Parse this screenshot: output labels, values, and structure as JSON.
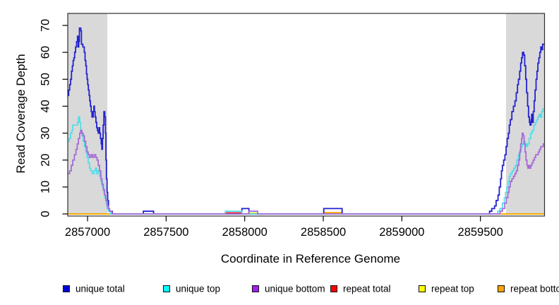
{
  "figure": {
    "xlabel": "Coordinate in Reference Genome",
    "ylabel": "Read Coverage Depth",
    "background_color": "#FFFFFF",
    "box_color": "#2F2F2F",
    "shade_color": "#D9D9D9",
    "tick_color": "#000000"
  },
  "chart_data": {
    "type": "line",
    "step": true,
    "title": "",
    "xlabel": "Coordinate in Reference Genome",
    "ylabel": "Read Coverage Depth",
    "xlim": [
      2856874,
      2859908
    ],
    "ylim": [
      0,
      70
    ],
    "x_ticks": [
      2857000,
      2857500,
      2858000,
      2858500,
      2859000,
      2859500
    ],
    "y_ticks": [
      0,
      10,
      20,
      30,
      40,
      50,
      60,
      70
    ],
    "grid": false,
    "legend_position": "bottom-horizontal",
    "shaded_regions": [
      {
        "name": "left-repeat-region",
        "from": 2856874,
        "to": 2857126
      },
      {
        "name": "right-repeat-region",
        "from": 2859663,
        "to": 2859908
      }
    ],
    "series": [
      {
        "name": "unique total",
        "line_color": "#2222CF",
        "legend_color": "#0000DD",
        "draw_order": 4,
        "points": [
          [
            2856874,
            44
          ],
          [
            2856880,
            46
          ],
          [
            2856886,
            48
          ],
          [
            2856892,
            50
          ],
          [
            2856898,
            53
          ],
          [
            2856903,
            55
          ],
          [
            2856908,
            57
          ],
          [
            2856913,
            58
          ],
          [
            2856918,
            60
          ],
          [
            2856924,
            62
          ],
          [
            2856930,
            64
          ],
          [
            2856936,
            66
          ],
          [
            2856940,
            62
          ],
          [
            2856944,
            64
          ],
          [
            2856948,
            69
          ],
          [
            2856957,
            68
          ],
          [
            2856961,
            63
          ],
          [
            2856970,
            62
          ],
          [
            2856979,
            60
          ],
          [
            2856984,
            57
          ],
          [
            2856989,
            55
          ],
          [
            2856993,
            52
          ],
          [
            2856997,
            50
          ],
          [
            2857001,
            48
          ],
          [
            2857005,
            46
          ],
          [
            2857010,
            44
          ],
          [
            2857014,
            42
          ],
          [
            2857018,
            40
          ],
          [
            2857023,
            38
          ],
          [
            2857028,
            36
          ],
          [
            2857036,
            38
          ],
          [
            2857040,
            40
          ],
          [
            2857044,
            38
          ],
          [
            2857048,
            36
          ],
          [
            2857053,
            34
          ],
          [
            2857058,
            32
          ],
          [
            2857063,
            31
          ],
          [
            2857068,
            30
          ],
          [
            2857073,
            32
          ],
          [
            2857077,
            30
          ],
          [
            2857082,
            28
          ],
          [
            2857087,
            26
          ],
          [
            2857091,
            24
          ],
          [
            2857095,
            28
          ],
          [
            2857099,
            33
          ],
          [
            2857104,
            38
          ],
          [
            2857110,
            36
          ],
          [
            2857114,
            30
          ],
          [
            2857117,
            20
          ],
          [
            2857120,
            13
          ],
          [
            2857124,
            8
          ],
          [
            2857128,
            5
          ],
          [
            2857133,
            2
          ],
          [
            2857140,
            1
          ],
          [
            2857158,
            0
          ],
          [
            2857355,
            1
          ],
          [
            2857420,
            0
          ],
          [
            2857982,
            2
          ],
          [
            2858027,
            0
          ],
          [
            2858503,
            2
          ],
          [
            2858620,
            0
          ],
          [
            2859558,
            1
          ],
          [
            2859572,
            2
          ],
          [
            2859590,
            3
          ],
          [
            2859600,
            5
          ],
          [
            2859612,
            7
          ],
          [
            2859620,
            10
          ],
          [
            2859628,
            13
          ],
          [
            2859634,
            16
          ],
          [
            2859640,
            18
          ],
          [
            2859648,
            20
          ],
          [
            2859656,
            22
          ],
          [
            2859663,
            25
          ],
          [
            2859670,
            28
          ],
          [
            2859678,
            30
          ],
          [
            2859684,
            33
          ],
          [
            2859690,
            35
          ],
          [
            2859700,
            38
          ],
          [
            2859710,
            40
          ],
          [
            2859720,
            42
          ],
          [
            2859728,
            45
          ],
          [
            2859736,
            48
          ],
          [
            2859742,
            50
          ],
          [
            2859750,
            53
          ],
          [
            2859756,
            56
          ],
          [
            2859762,
            58
          ],
          [
            2859768,
            60
          ],
          [
            2859776,
            59
          ],
          [
            2859782,
            55
          ],
          [
            2859788,
            50
          ],
          [
            2859794,
            45
          ],
          [
            2859800,
            40
          ],
          [
            2859806,
            36
          ],
          [
            2859812,
            34
          ],
          [
            2859816,
            33
          ],
          [
            2859822,
            35
          ],
          [
            2859826,
            37
          ],
          [
            2859830,
            34
          ],
          [
            2859836,
            38
          ],
          [
            2859842,
            42
          ],
          [
            2859848,
            46
          ],
          [
            2859854,
            50
          ],
          [
            2859860,
            53
          ],
          [
            2859866,
            56
          ],
          [
            2859872,
            58
          ],
          [
            2859878,
            60
          ],
          [
            2859884,
            62
          ],
          [
            2859890,
            61
          ],
          [
            2859896,
            63
          ],
          [
            2859908,
            63
          ]
        ]
      },
      {
        "name": "unique top",
        "line_color": "#53DEE8",
        "legend_color": "#00FFFF",
        "draw_order": 5,
        "points": [
          [
            2856874,
            27
          ],
          [
            2856884,
            28
          ],
          [
            2856892,
            30
          ],
          [
            2856900,
            31
          ],
          [
            2856906,
            33
          ],
          [
            2856932,
            33
          ],
          [
            2856936,
            34
          ],
          [
            2856942,
            36
          ],
          [
            2856950,
            34
          ],
          [
            2856956,
            31
          ],
          [
            2856964,
            29
          ],
          [
            2856972,
            27
          ],
          [
            2856980,
            25
          ],
          [
            2856988,
            23
          ],
          [
            2856996,
            21
          ],
          [
            2857004,
            19
          ],
          [
            2857012,
            17
          ],
          [
            2857020,
            16
          ],
          [
            2857030,
            15
          ],
          [
            2857042,
            16
          ],
          [
            2857050,
            17
          ],
          [
            2857058,
            15
          ],
          [
            2857066,
            16
          ],
          [
            2857076,
            14
          ],
          [
            2857086,
            12
          ],
          [
            2857094,
            10
          ],
          [
            2857102,
            8
          ],
          [
            2857110,
            6
          ],
          [
            2857118,
            4
          ],
          [
            2857124,
            2
          ],
          [
            2857132,
            1
          ],
          [
            2857145,
            0
          ],
          [
            2857877,
            1
          ],
          [
            2857982,
            0
          ],
          [
            2859600,
            0
          ],
          [
            2859610,
            1
          ],
          [
            2859625,
            2
          ],
          [
            2859640,
            4
          ],
          [
            2859652,
            6
          ],
          [
            2859660,
            8
          ],
          [
            2859668,
            10
          ],
          [
            2859676,
            12
          ],
          [
            2859684,
            14
          ],
          [
            2859692,
            15
          ],
          [
            2859702,
            16
          ],
          [
            2859712,
            17
          ],
          [
            2859722,
            18
          ],
          [
            2859732,
            20
          ],
          [
            2859742,
            22
          ],
          [
            2859752,
            24
          ],
          [
            2859760,
            25
          ],
          [
            2859768,
            26
          ],
          [
            2859776,
            27
          ],
          [
            2859784,
            26
          ],
          [
            2859792,
            25
          ],
          [
            2859800,
            26
          ],
          [
            2859810,
            28
          ],
          [
            2859820,
            30
          ],
          [
            2859830,
            31
          ],
          [
            2859840,
            33
          ],
          [
            2859850,
            34
          ],
          [
            2859858,
            35
          ],
          [
            2859866,
            36
          ],
          [
            2859874,
            37
          ],
          [
            2859882,
            36
          ],
          [
            2859890,
            38
          ],
          [
            2859898,
            39
          ],
          [
            2859908,
            39
          ]
        ]
      },
      {
        "name": "unique bottom",
        "line_color": "#A66BD8",
        "legend_color": "#A020F0",
        "draw_order": 6,
        "points": [
          [
            2856874,
            15
          ],
          [
            2856886,
            16
          ],
          [
            2856896,
            18
          ],
          [
            2856906,
            20
          ],
          [
            2856916,
            22
          ],
          [
            2856926,
            24
          ],
          [
            2856934,
            26
          ],
          [
            2856942,
            28
          ],
          [
            2856950,
            30
          ],
          [
            2856956,
            31
          ],
          [
            2856964,
            30
          ],
          [
            2856972,
            29
          ],
          [
            2856980,
            27
          ],
          [
            2856988,
            25
          ],
          [
            2856996,
            23
          ],
          [
            2857004,
            22
          ],
          [
            2857012,
            21
          ],
          [
            2857022,
            22
          ],
          [
            2857032,
            21
          ],
          [
            2857042,
            22
          ],
          [
            2857052,
            21
          ],
          [
            2857060,
            20
          ],
          [
            2857068,
            18
          ],
          [
            2857076,
            16
          ],
          [
            2857084,
            13
          ],
          [
            2857092,
            11
          ],
          [
            2857100,
            9
          ],
          [
            2857108,
            7
          ],
          [
            2857116,
            5
          ],
          [
            2857124,
            3
          ],
          [
            2857132,
            2
          ],
          [
            2857140,
            1
          ],
          [
            2857155,
            0
          ],
          [
            2858027,
            1
          ],
          [
            2858082,
            0
          ],
          [
            2859615,
            0
          ],
          [
            2859625,
            1
          ],
          [
            2859640,
            2
          ],
          [
            2859655,
            4
          ],
          [
            2859665,
            6
          ],
          [
            2859675,
            8
          ],
          [
            2859682,
            10
          ],
          [
            2859690,
            12
          ],
          [
            2859700,
            13
          ],
          [
            2859710,
            14
          ],
          [
            2859720,
            15
          ],
          [
            2859728,
            16
          ],
          [
            2859736,
            18
          ],
          [
            2859744,
            20
          ],
          [
            2859750,
            23
          ],
          [
            2859756,
            26
          ],
          [
            2859762,
            28
          ],
          [
            2859766,
            30
          ],
          [
            2859772,
            29
          ],
          [
            2859778,
            26
          ],
          [
            2859784,
            23
          ],
          [
            2859790,
            20
          ],
          [
            2859796,
            18
          ],
          [
            2859802,
            17
          ],
          [
            2859808,
            18
          ],
          [
            2859814,
            17
          ],
          [
            2859820,
            18
          ],
          [
            2859828,
            19
          ],
          [
            2859836,
            20
          ],
          [
            2859844,
            21
          ],
          [
            2859852,
            22
          ],
          [
            2859860,
            22
          ],
          [
            2859868,
            23
          ],
          [
            2859876,
            24
          ],
          [
            2859884,
            25
          ],
          [
            2859892,
            25
          ],
          [
            2859900,
            26
          ],
          [
            2859908,
            26
          ]
        ]
      },
      {
        "name": "repeat total",
        "line_color": "#E02020",
        "legend_color": "#FF0000",
        "draw_order": 1,
        "points": [
          [
            2856874,
            0
          ],
          [
            2857877,
            0.4
          ],
          [
            2857982,
            0
          ],
          [
            2859908,
            0
          ]
        ]
      },
      {
        "name": "repeat top",
        "line_color": "#FFFF00",
        "legend_color": "#FFFF00",
        "draw_order": 2,
        "points": [
          [
            2856874,
            0
          ],
          [
            2858027,
            0.3
          ],
          [
            2858082,
            0
          ],
          [
            2859908,
            0
          ]
        ]
      },
      {
        "name": "repeat bottom",
        "line_color": "#FFA500",
        "legend_color": "#FFA500",
        "draw_order": 3,
        "points": [
          [
            2856874,
            0
          ],
          [
            2858503,
            0.5
          ],
          [
            2858620,
            0
          ],
          [
            2859908,
            0
          ]
        ]
      }
    ]
  }
}
